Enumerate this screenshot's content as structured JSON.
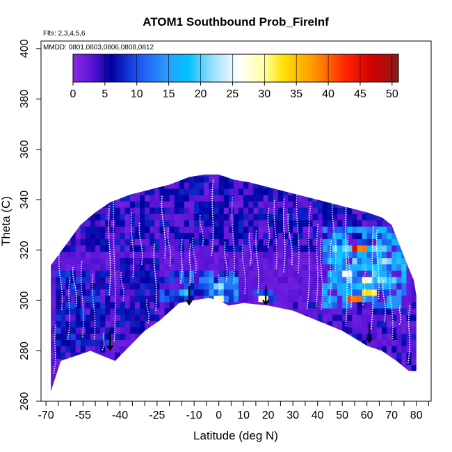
{
  "chart_data": {
    "type": "heatmap",
    "title": "ATOM1 Southbound Prob_FireInf",
    "subtitle_flights": "Flts: 2,3,4,5,6",
    "subtitle_dates": "MMDD: 0801,0803,0806,0808,0812",
    "xlabel": "Latitude (deg N)",
    "ylabel": "Theta (C)",
    "xlim": [
      -72,
      86
    ],
    "ylim": [
      260,
      403
    ],
    "x_ticks_major": [
      -70,
      -55,
      -40,
      -25,
      -10,
      0,
      10,
      20,
      30,
      40,
      50,
      60,
      70,
      80
    ],
    "x_ticks_minor": [
      -65,
      -60,
      -50,
      -45,
      -35,
      -30,
      -20,
      -15,
      -5,
      5,
      15,
      25,
      35,
      45,
      55,
      65,
      75,
      85
    ],
    "x_tick_labels": [
      "-70",
      "-55",
      "-40",
      "-25",
      "-10",
      "0",
      "10",
      "20",
      "30",
      "40",
      "50",
      "60",
      "70",
      "80"
    ],
    "y_ticks": [
      260,
      280,
      300,
      320,
      340,
      360,
      380,
      400
    ],
    "y_tick_labels": [
      "260",
      "280",
      "300",
      "320",
      "340",
      "360",
      "380",
      "400"
    ],
    "colorbar": {
      "range": [
        0,
        51
      ],
      "ticks": [
        0,
        5,
        10,
        15,
        20,
        25,
        30,
        35,
        40,
        45,
        50
      ],
      "tick_labels": [
        "0",
        "5",
        "10",
        "15",
        "20",
        "25",
        "30",
        "35",
        "40",
        "45",
        "50"
      ],
      "stops": [
        {
          "v": 0,
          "color": "#8a2be2"
        },
        {
          "v": 3,
          "color": "#5a14d8"
        },
        {
          "v": 6,
          "color": "#0000a0"
        },
        {
          "v": 10,
          "color": "#1e50f0"
        },
        {
          "v": 15,
          "color": "#28a0ff"
        },
        {
          "v": 18,
          "color": "#00c0ff"
        },
        {
          "v": 22,
          "color": "#a0e0ff"
        },
        {
          "v": 26,
          "color": "#ffffff"
        },
        {
          "v": 30,
          "color": "#ffffa0"
        },
        {
          "v": 33,
          "color": "#ffe000"
        },
        {
          "v": 38,
          "color": "#ff9000"
        },
        {
          "v": 43,
          "color": "#ff2000"
        },
        {
          "v": 47,
          "color": "#d00000"
        },
        {
          "v": 51,
          "color": "#8b1a1a"
        }
      ]
    },
    "lower_boundary": [
      [
        -68,
        264
      ],
      [
        -64,
        276
      ],
      [
        -58,
        278
      ],
      [
        -52,
        280
      ],
      [
        -42,
        276
      ],
      [
        -30,
        288
      ],
      [
        -24,
        292
      ],
      [
        -16,
        299
      ],
      [
        -11,
        300
      ],
      [
        -4,
        301
      ],
      [
        0,
        300
      ],
      [
        4,
        298
      ],
      [
        10,
        299
      ],
      [
        20,
        298
      ],
      [
        30,
        296
      ],
      [
        40,
        292
      ],
      [
        50,
        288
      ],
      [
        60,
        282
      ],
      [
        66,
        280
      ],
      [
        72,
        276
      ],
      [
        77,
        272
      ],
      [
        80,
        272
      ]
    ],
    "upper_boundary": [
      [
        -68,
        314
      ],
      [
        -62,
        322
      ],
      [
        -56,
        330
      ],
      [
        -50,
        335
      ],
      [
        -44,
        339
      ],
      [
        -36,
        342
      ],
      [
        -28,
        344
      ],
      [
        -20,
        346
      ],
      [
        -12,
        349
      ],
      [
        -6,
        350
      ],
      [
        0,
        350
      ],
      [
        6,
        348
      ],
      [
        12,
        347
      ],
      [
        20,
        345
      ],
      [
        28,
        343
      ],
      [
        36,
        341
      ],
      [
        44,
        339
      ],
      [
        52,
        337
      ],
      [
        60,
        335
      ],
      [
        66,
        333
      ],
      [
        70,
        330
      ],
      [
        74,
        320
      ],
      [
        76,
        315
      ],
      [
        79,
        308
      ],
      [
        80,
        302
      ]
    ],
    "field_regions": [
      {
        "lat": [
          -24,
          8
        ],
        "theta": [
          300,
          312
        ],
        "value": 11
      },
      {
        "lat": [
          -5,
          8
        ],
        "theta": [
          299,
          310
        ],
        "value": 13
      },
      {
        "lat": [
          -20,
          -8
        ],
        "theta": [
          300,
          306
        ],
        "value": 9
      },
      {
        "lat": [
          15,
          24
        ],
        "theta": [
          299,
          304
        ],
        "value": 11
      },
      {
        "lat": [
          42,
          76
        ],
        "theta": [
          296,
          330
        ],
        "value": 15
      },
      {
        "lat": [
          44,
          76
        ],
        "theta": [
          304,
          322
        ],
        "value": 18
      },
      {
        "lat": [
          -66,
          -44
        ],
        "theta": [
          282,
          312
        ],
        "value": 8
      },
      {
        "lat": [
          -40,
          -25
        ],
        "theta": [
          292,
          316
        ],
        "value": 7
      }
    ],
    "hotspots": [
      {
        "lat": 0.5,
        "theta": 300.5,
        "value": 28
      },
      {
        "lat": 17.5,
        "theta": 300.5,
        "value": 28
      },
      {
        "lat": 55,
        "theta": 301,
        "value": 40
      },
      {
        "lat": 57,
        "theta": 321,
        "value": 44
      },
      {
        "lat": 61,
        "theta": 304,
        "value": 33
      },
      {
        "lat": 52,
        "theta": 311,
        "value": 27
      },
      {
        "lat": 60,
        "theta": 308,
        "value": 31
      },
      {
        "lat": 0,
        "theta": 305,
        "value": 22
      },
      {
        "lat": -14,
        "theta": 303,
        "value": 19
      },
      {
        "lat": 66,
        "theta": 315,
        "value": 22
      }
    ],
    "arrows": [
      {
        "lat": -44,
        "theta": 284
      },
      {
        "lat": -12,
        "theta": 302
      },
      {
        "lat": 19,
        "theta": 302
      },
      {
        "lat": 61,
        "theta": 287
      }
    ],
    "flight_tracks_color": "#ffffff"
  }
}
